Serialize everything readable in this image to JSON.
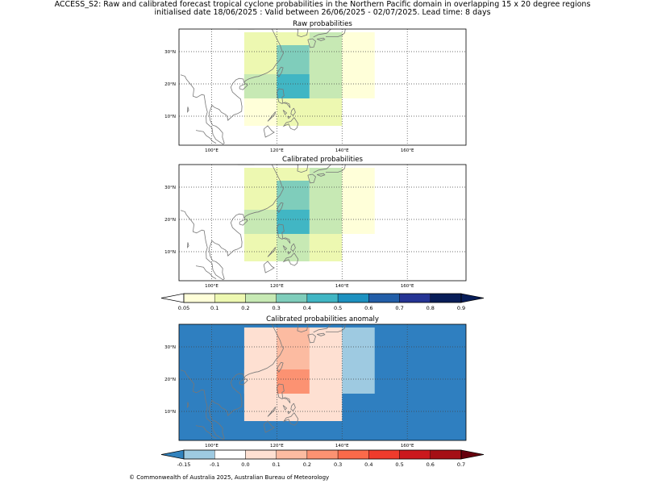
{
  "header": {
    "line1": "ACCESS_S2: Raw and calibrated forecast tropical cyclone probabilities in the Northern Pacific domain in overlapping 15 x 20 degree regions",
    "line2": "initialised date 18/06/2025 :  Valid between 26/06/2025 - 02/07/2025. Lead time: 8 days"
  },
  "footer": "© Commonwealth of Australia 2025, Australian Bureau of Meteorology",
  "map": {
    "lon_range": [
      90,
      178
    ],
    "lat_range": [
      1,
      37
    ],
    "lon_ticks": [
      "100°E",
      "120°E",
      "140°E",
      "160°E"
    ],
    "lat_ticks": [
      "10°N",
      "20°N",
      "30°N"
    ],
    "lon_tick_values": [
      100,
      120,
      140,
      160
    ],
    "lat_tick_values": [
      10,
      20,
      30
    ],
    "coastline_color": "#777777"
  },
  "panels": [
    {
      "title": "Raw probabilities",
      "colormap": "prob",
      "background": "#ffffff",
      "cells": [
        {
          "lon": [
            110,
            120
          ],
          "lat": [
            36,
            15.5
          ],
          "value": 0.15
        },
        {
          "lon": [
            120,
            130
          ],
          "lat": [
            36,
            32
          ],
          "value": 0.15
        },
        {
          "lon": [
            130,
            140
          ],
          "lat": [
            36,
            32
          ],
          "value": 0.2
        },
        {
          "lon": [
            140,
            150
          ],
          "lat": [
            36,
            15.5
          ],
          "value": 0.07
        },
        {
          "lon": [
            120,
            130
          ],
          "lat": [
            32,
            23
          ],
          "value": 0.35
        },
        {
          "lon": [
            130,
            140
          ],
          "lat": [
            32,
            15.5
          ],
          "value": 0.25
        },
        {
          "lon": [
            110,
            120
          ],
          "lat": [
            23,
            15.5
          ],
          "value": 0.25
        },
        {
          "lon": [
            120,
            130
          ],
          "lat": [
            23,
            15.5
          ],
          "value": 0.45
        },
        {
          "lon": [
            110,
            120
          ],
          "lat": [
            15.5,
            7
          ],
          "value": 0.07
        },
        {
          "lon": [
            120,
            140
          ],
          "lat": [
            15.5,
            7
          ],
          "value": 0.15
        }
      ]
    },
    {
      "title": "Calibrated probabilities",
      "colormap": "prob",
      "background": "#ffffff",
      "cells": [
        {
          "lon": [
            110,
            120
          ],
          "lat": [
            36,
            15.5
          ],
          "value": 0.15
        },
        {
          "lon": [
            120,
            130
          ],
          "lat": [
            36,
            32
          ],
          "value": 0.15
        },
        {
          "lon": [
            130,
            140
          ],
          "lat": [
            36,
            32
          ],
          "value": 0.2
        },
        {
          "lon": [
            140,
            150
          ],
          "lat": [
            36,
            15.5
          ],
          "value": 0.07
        },
        {
          "lon": [
            120,
            130
          ],
          "lat": [
            32,
            23
          ],
          "value": 0.35
        },
        {
          "lon": [
            130,
            140
          ],
          "lat": [
            32,
            15.5
          ],
          "value": 0.25
        },
        {
          "lon": [
            110,
            120
          ],
          "lat": [
            23,
            15.5
          ],
          "value": 0.25
        },
        {
          "lon": [
            120,
            130
          ],
          "lat": [
            23,
            15.5
          ],
          "value": 0.45
        },
        {
          "lon": [
            110,
            120
          ],
          "lat": [
            15.5,
            7
          ],
          "value": 0.15
        },
        {
          "lon": [
            120,
            130
          ],
          "lat": [
            15.5,
            7
          ],
          "value": 0.25
        },
        {
          "lon": [
            130,
            140
          ],
          "lat": [
            15.5,
            7
          ],
          "value": 0.15
        }
      ]
    },
    {
      "title": "Calibrated probabilities anomaly",
      "colormap": "anom",
      "background": "#2f7fc0",
      "cells": [
        {
          "lon": [
            110,
            120
          ],
          "lat": [
            36,
            7
          ],
          "value": 0.0
        },
        {
          "lon": [
            120,
            140
          ],
          "lat": [
            36,
            7
          ],
          "value": 0.0
        },
        {
          "lon": [
            140,
            150
          ],
          "lat": [
            36,
            15.5
          ],
          "value": -0.12
        },
        {
          "lon": [
            120,
            130
          ],
          "lat": [
            36,
            32
          ],
          "value": 0.15
        },
        {
          "lon": [
            130,
            140
          ],
          "lat": [
            32,
            15.5
          ],
          "value": 0.05
        },
        {
          "lon": [
            110,
            120
          ],
          "lat": [
            23,
            15.5
          ],
          "value": 0.05
        },
        {
          "lon": [
            120,
            130
          ],
          "lat": [
            32,
            23
          ],
          "value": 0.15
        },
        {
          "lon": [
            120,
            130
          ],
          "lat": [
            23,
            15.5
          ],
          "value": 0.25
        },
        {
          "lon": [
            120,
            130
          ],
          "lat": [
            15.5,
            7
          ],
          "value": 0.05
        }
      ]
    }
  ],
  "colorbars": {
    "prob": {
      "labels": [
        "0.05",
        "0.1",
        "0.2",
        "0.3",
        "0.4",
        "0.5",
        "0.6",
        "0.7",
        "0.8",
        "0.9"
      ],
      "colors": [
        "#ffffd9",
        "#edf8b1",
        "#c7e9b4",
        "#7fcdbb",
        "#41b6c4",
        "#1d91c0",
        "#225ea8",
        "#253494",
        "#081d58"
      ],
      "under_color": "#ffffff",
      "over_color": "#081d58"
    },
    "anom": {
      "labels": [
        "-0.15",
        "-0.1",
        "0.0",
        "0.1",
        "0.2",
        "0.3",
        "0.4",
        "0.5",
        "0.6",
        "0.7"
      ],
      "colors": [
        "#9ecae1",
        "#ffffff",
        "#fee0d2",
        "#fcbba1",
        "#fc9272",
        "#fb6a4a",
        "#ef3b2c",
        "#cb181d",
        "#a50f15"
      ],
      "under_color": "#3182bd",
      "over_color": "#67000d"
    }
  }
}
